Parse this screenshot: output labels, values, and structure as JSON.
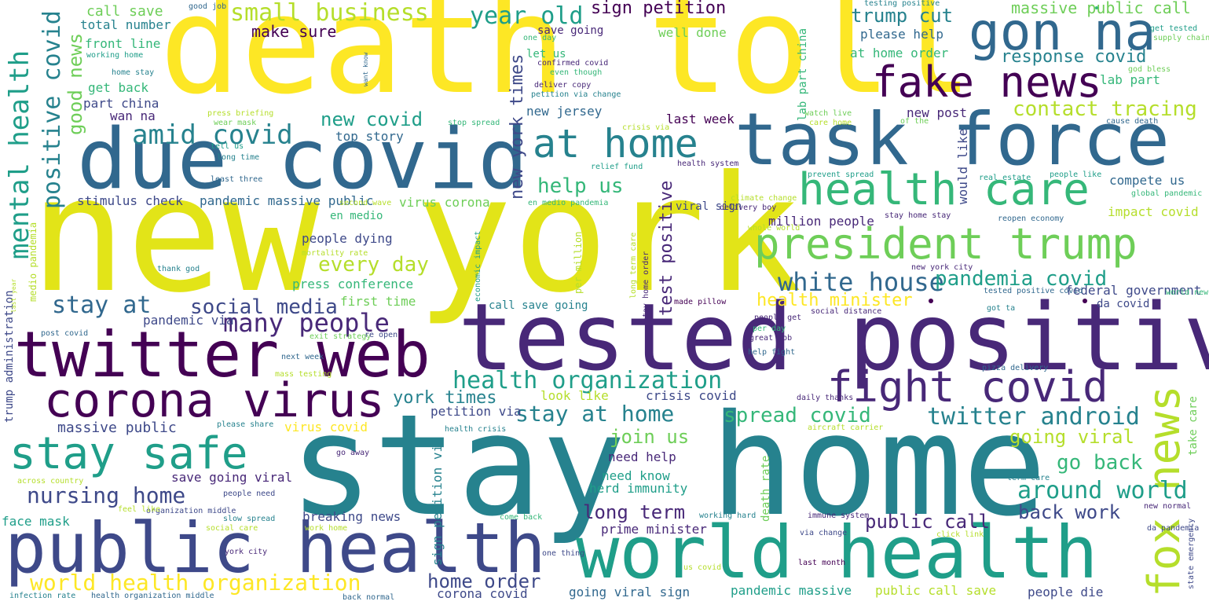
{
  "palette": {
    "yellow": "#fde725",
    "lime": "#b5de2b",
    "green": "#6ece58",
    "mint": "#35b779",
    "teal_green": "#1f9e89",
    "teal": "#26828e",
    "steel": "#31688e",
    "indigo": "#3e4989",
    "purple": "#482878",
    "dark": "#440154"
  },
  "words": [
    "death toll",
    "new york",
    "stay home",
    "tested positive",
    "task force",
    "due covid",
    "public health",
    "world health",
    "twitter web",
    "corona virus",
    "president trump",
    "health care",
    "gon na",
    "fake news",
    "fight covid",
    "fox news",
    "stay safe",
    "at home",
    "amid covid",
    "white house",
    "health organization",
    "world health organization",
    "nursing home",
    "mental health",
    "positive covid",
    "small business",
    "year old",
    "sign petition",
    "trump cut",
    "massive public call",
    "response covid",
    "contact tracing",
    "many people",
    "stay at home",
    "stay at",
    "social media",
    "twitter android",
    "spread covid",
    "pandemia covid",
    "around world",
    "public call",
    "long term",
    "going viral",
    "go back",
    "back work",
    "home order",
    "join us",
    "help us",
    "good news",
    "new york times",
    "test positive",
    "every day",
    "new covid",
    "health minister",
    "make sure",
    "call save",
    "total number",
    "front line",
    "working home",
    "part china",
    "wan na",
    "get back",
    "stimulus check",
    "pandemic massive public",
    "virus corona",
    "new jersey",
    "top story",
    "people dying",
    "press conference",
    "first time",
    "pandemic via",
    "massive public",
    "save going viral",
    "need help",
    "need know",
    "herd immunity",
    "prime minister",
    "breaking news",
    "face mask",
    "public call save",
    "people die",
    "going viral sign",
    "pandemic massive",
    "corona covid",
    "sign petition via",
    "york times",
    "petition via",
    "look like",
    "crisis covid",
    "virus covid",
    "trump administration",
    "federal government",
    "impact covid",
    "compete us",
    "da covid",
    "lab part china",
    "would like",
    "million people",
    "last week",
    "please help",
    "at home order",
    "lab part",
    "well done",
    "let us",
    "save going",
    "en medio",
    "viral sign",
    "call save going",
    "death rate",
    "take care",
    "state emergency",
    "stay home order",
    "long term care",
    "per million",
    "economic impact",
    "medio pandemia",
    "post covid",
    "exit strategy",
    "next week",
    "mass testing",
    "infection rate",
    "health organization middle",
    "back normal",
    "organization middle",
    "people need",
    "across country",
    "feel like",
    "slow spread",
    "social care",
    "work home",
    "york city",
    "one thing",
    "us covid",
    "last month",
    "via change",
    "immune system",
    "working hard",
    "come back",
    "new normal",
    "da pandemia",
    "term care",
    "click link",
    "aircraft carrier",
    "health crisis",
    "please share",
    "go away",
    "daily thanks",
    "pizza delivery",
    "help fight",
    "great job",
    "per day",
    "people get",
    "social distance",
    "made pillow",
    "tested positive covid",
    "new york city",
    "stay home stay",
    "reopen economy",
    "people like",
    "real estate",
    "global pandemic",
    "cause death",
    "supply chain",
    "get tested",
    "god bless",
    "testing positive",
    "good job",
    "one day",
    "confirmed covid",
    "even though",
    "deliver copy",
    "petition via change",
    "home stay",
    "press briefing",
    "wear mask",
    "tell us",
    "long time",
    "least three",
    "second wave",
    "mortality rate",
    "thank god",
    "last year",
    "re open",
    "want know",
    "stop spread",
    "crisis via",
    "relief fund",
    "health system",
    "climate change",
    "delivery boy",
    "whole world",
    "en medio pandemia",
    "watch live",
    "care home",
    "new post",
    "of the",
    "prevent spread",
    "got ta",
    "world news"
  ]
}
